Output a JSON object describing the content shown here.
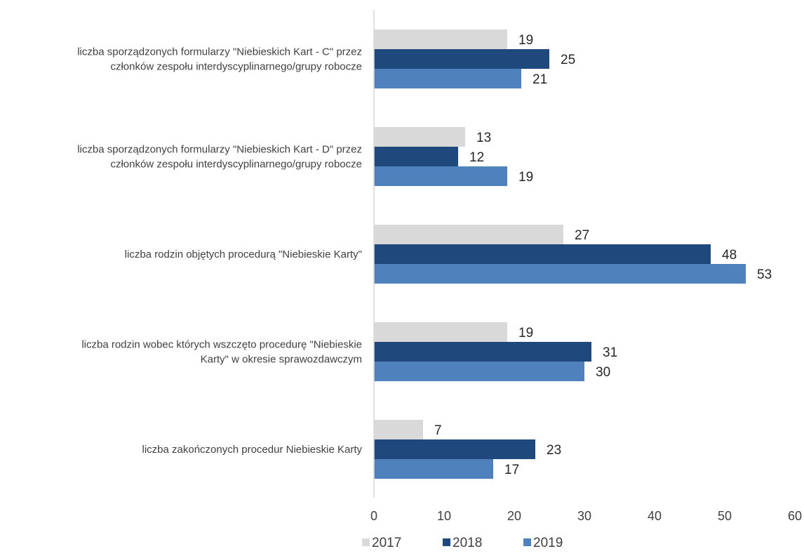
{
  "chart_data": {
    "type": "bar",
    "orientation": "horizontal",
    "categories": [
      [
        "liczba sporządzonych formularzy \"Niebieskich Kart - C\" przez",
        "członków zespołu interdyscyplinarnego/grupy robocze"
      ],
      [
        "liczba sporządzonych formularzy \"Niebieskich Kart - D\" przez",
        "członków zespołu interdyscyplinarnego/grupy robocze"
      ],
      [
        "liczba rodzin objętych procedurą \"Niebieskie Karty\""
      ],
      [
        "liczba rodzin wobec których wszczęto procedurę \"Niebieskie",
        "Karty\" w okresie sprawozdawczym"
      ],
      [
        "liczba zakończonych procedur Niebieskie Karty"
      ]
    ],
    "series": [
      {
        "name": "2017",
        "color": "#d9d9d9",
        "values": [
          19,
          13,
          27,
          19,
          7
        ]
      },
      {
        "name": "2018",
        "color": "#1f497d",
        "values": [
          25,
          12,
          48,
          31,
          23
        ]
      },
      {
        "name": "2019",
        "color": "#4f81bd",
        "values": [
          21,
          19,
          53,
          30,
          17
        ]
      }
    ],
    "xlim": [
      0,
      60
    ],
    "xticks": [
      "0",
      "10",
      "20",
      "30",
      "40",
      "50",
      "60"
    ],
    "title": "",
    "xlabel": "",
    "ylabel": "",
    "grid": false,
    "legend_position": "bottom"
  }
}
